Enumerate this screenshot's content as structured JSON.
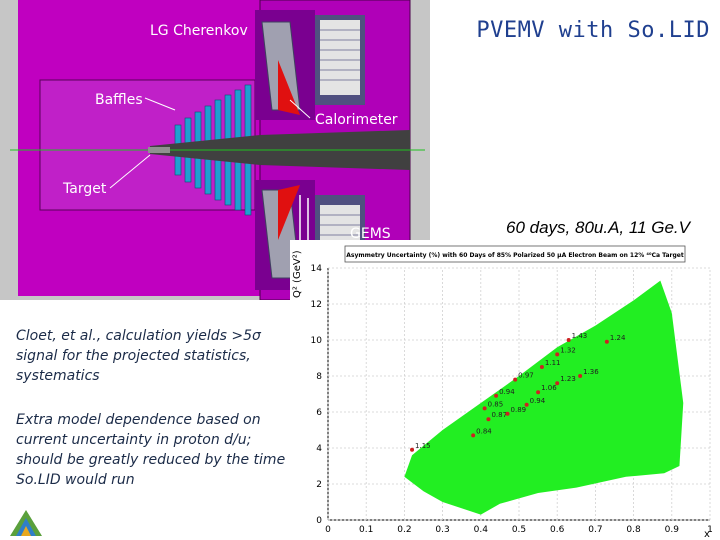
{
  "slide": {
    "title": "PVEMV with So.LID",
    "subtitle": "60 days, 80u.A, 11 Ge.V",
    "note1": "Cloet, et al., calculation yields >5σ signal for the projected statistics, systematics",
    "note2": "Extra model dependence based on current uncertainty in proton d/u; should be greatly reduced by the time So.LID would run"
  },
  "detector": {
    "labels": {
      "cherenkov": "LG Cherenkov",
      "baffles": "Baffles",
      "calorimeter": "Calorimeter",
      "target": "Target",
      "gems": "GEMS"
    },
    "colors": {
      "body": "#c000c0",
      "dark": "#8a0090",
      "baffle": "#1f9fd0"
    }
  },
  "plot": {
    "header": "Asymmetry Uncertainty (%) with 60 Days of 85% Polarized 50 µA Electron Beam on 12% ⁴⁰Ca Target",
    "ylabel": "Q² (GeV²)",
    "xlabel": "x",
    "yticks": [
      "0",
      "2",
      "4",
      "6",
      "8",
      "10",
      "12",
      "14"
    ],
    "xticks": [
      "0",
      "0.1",
      "0.2",
      "0.3",
      "0.4",
      "0.5",
      "0.6",
      "0.7",
      "0.8",
      "0.9",
      "1"
    ]
  },
  "chart_data": {
    "type": "scatter",
    "xlim": [
      0,
      1
    ],
    "ylim": [
      0,
      14
    ],
    "fill_color": "#22ee22",
    "point_color": "#cc2222",
    "points": [
      {
        "x": 0.22,
        "y": 3.9,
        "label": "1.15"
      },
      {
        "x": 0.38,
        "y": 4.7,
        "label": "0.84"
      },
      {
        "x": 0.42,
        "y": 5.6,
        "label": "0.87"
      },
      {
        "x": 0.41,
        "y": 6.2,
        "label": "0.85"
      },
      {
        "x": 0.47,
        "y": 5.9,
        "label": "0.89"
      },
      {
        "x": 0.44,
        "y": 6.9,
        "label": "0.94"
      },
      {
        "x": 0.52,
        "y": 6.4,
        "label": "0.94"
      },
      {
        "x": 0.55,
        "y": 7.1,
        "label": "1.06"
      },
      {
        "x": 0.49,
        "y": 7.8,
        "label": "0.97"
      },
      {
        "x": 0.6,
        "y": 7.6,
        "label": "1.23"
      },
      {
        "x": 0.56,
        "y": 8.5,
        "label": "1.11"
      },
      {
        "x": 0.6,
        "y": 9.2,
        "label": "1.32"
      },
      {
        "x": 0.66,
        "y": 8.0,
        "label": "1.36"
      },
      {
        "x": 0.63,
        "y": 10.0,
        "label": "1.43"
      },
      {
        "x": 0.73,
        "y": 9.9,
        "label": "1.24"
      }
    ]
  }
}
